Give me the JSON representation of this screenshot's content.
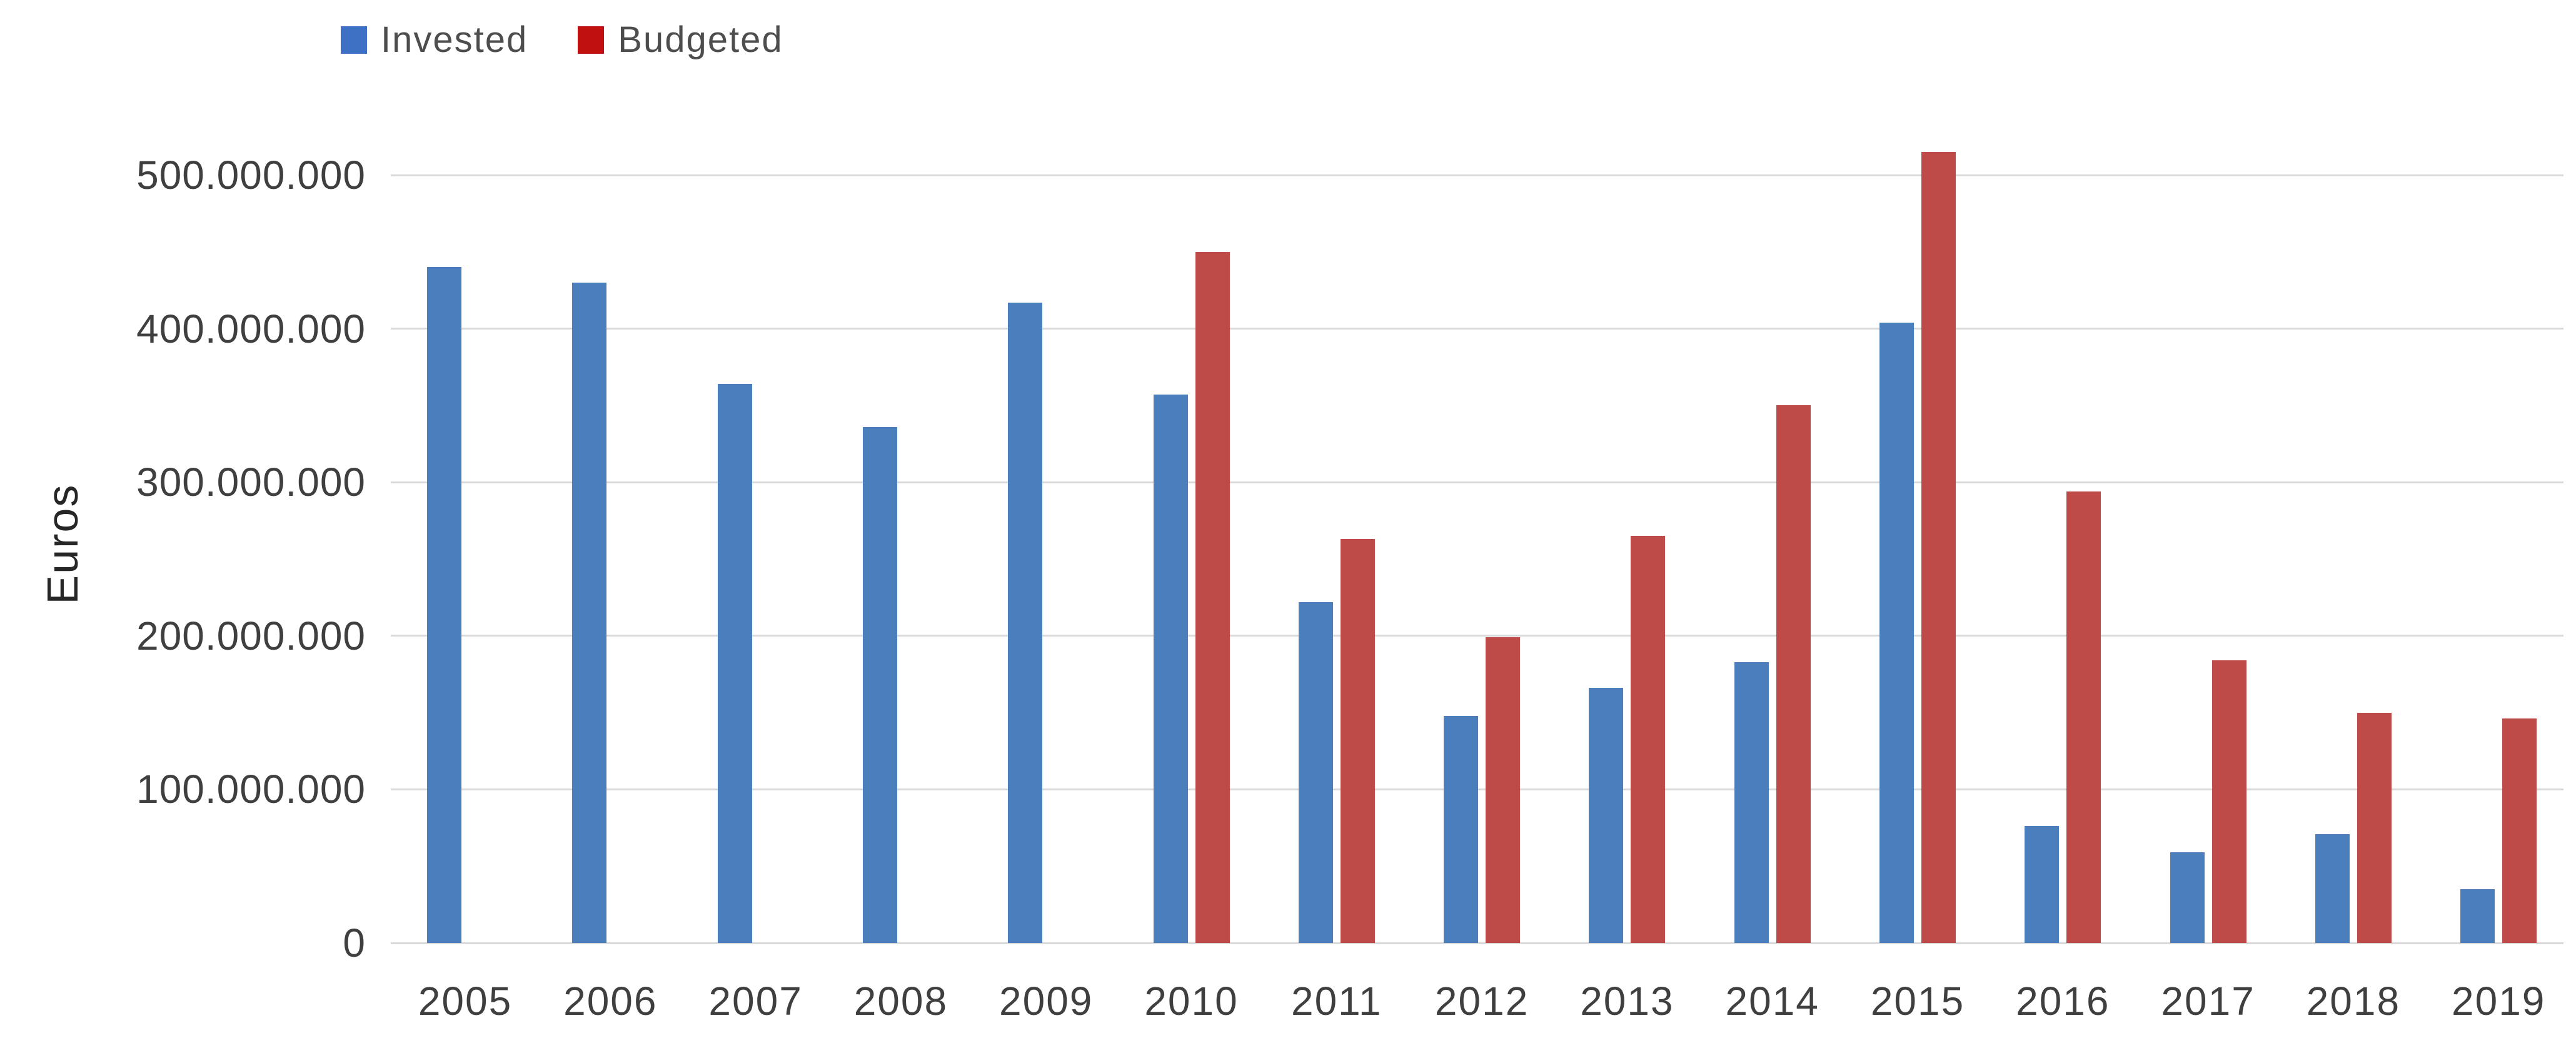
{
  "figure": {
    "background": "#ffffff",
    "grid_color": "#d9d9d9",
    "text_color": "#3f3f3f"
  },
  "chart_data": {
    "type": "bar",
    "title": "",
    "xlabel": "",
    "ylabel": "Euros",
    "unit": "EUR",
    "grid": true,
    "legend_position": "top-left",
    "ylim": [
      0,
      520000000
    ],
    "gridline_interval": 100000000,
    "categories": [
      "2005",
      "2006",
      "2007",
      "2008",
      "2009",
      "2010",
      "2011",
      "2012",
      "2013",
      "2014",
      "2015",
      "2016",
      "2017",
      "2018",
      "2019"
    ],
    "series": [
      {
        "name": "Invested",
        "bar_color": "#4a7ebc",
        "legend_color": "#3e70c4",
        "values": [
          440000000,
          430000000,
          364000000,
          336000000,
          417000000,
          357000000,
          222000000,
          148000000,
          166000000,
          183000000,
          404000000,
          76000000,
          59000000,
          71000000,
          35000000
        ]
      },
      {
        "name": "Budgeted",
        "bar_color": "#bf4b48",
        "legend_color": "#c01010",
        "values": [
          null,
          null,
          null,
          null,
          null,
          450000000,
          263000000,
          199000000,
          265000000,
          350000000,
          515000000,
          294000000,
          184000000,
          150000000,
          146000000
        ]
      }
    ],
    "y_axis": {
      "ticks": [
        {
          "label": "500.000.000",
          "value": 500000000
        },
        {
          "label": "400.000.000",
          "value": 400000000
        },
        {
          "label": "300.000.000",
          "value": 300000000
        },
        {
          "label": "200.000.000",
          "value": 200000000
        },
        {
          "label": "100.000.000",
          "value": 100000000
        },
        {
          "label": "0",
          "value": 0
        }
      ]
    }
  }
}
